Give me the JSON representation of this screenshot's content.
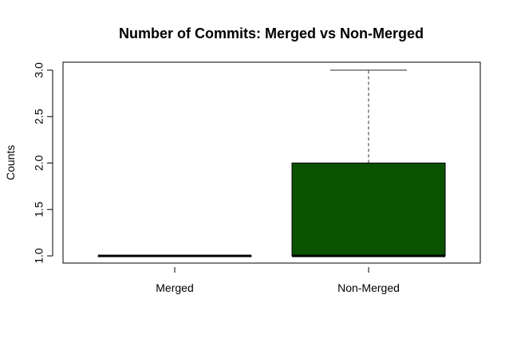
{
  "chart_data": {
    "type": "boxplot",
    "title": "Number of Commits: Merged vs Non-Merged",
    "xlabel": "",
    "ylabel": "Counts",
    "categories": [
      "Merged",
      "Non-Merged"
    ],
    "boxes": [
      {
        "category": "Merged",
        "min": 1,
        "q1": 1,
        "median": 1,
        "q3": 1,
        "max": 1,
        "fill": "#0b5200"
      },
      {
        "category": "Non-Merged",
        "min": 1,
        "q1": 1,
        "median": 1,
        "q3": 2,
        "max": 3,
        "fill": "#0b5200"
      }
    ],
    "yticks": [
      "1.0",
      "1.5",
      "2.0",
      "2.5",
      "3.0"
    ],
    "ylim": [
      0.92,
      3.08
    ],
    "grid": false,
    "colors": {
      "box_fill": "#0b5200",
      "whisker": "#555555"
    }
  }
}
